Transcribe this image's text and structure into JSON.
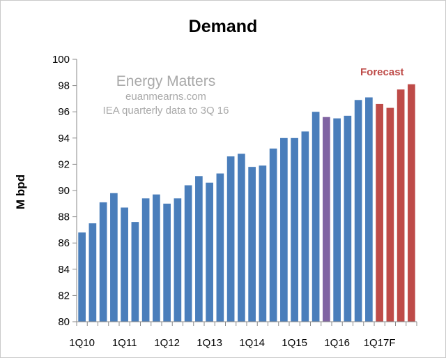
{
  "chart_data": {
    "type": "bar",
    "title": "Demand",
    "ylabel": "M bpd",
    "xlabel": "",
    "ylim": [
      80,
      100
    ],
    "yticks": [
      80,
      82,
      84,
      86,
      88,
      90,
      92,
      94,
      96,
      98,
      100
    ],
    "grid": false,
    "x_tick_labels": [
      {
        "label": "1Q10",
        "index": 0
      },
      {
        "label": "1Q11",
        "index": 4
      },
      {
        "label": "1Q12",
        "index": 8
      },
      {
        "label": "1Q13",
        "index": 12
      },
      {
        "label": "1Q14",
        "index": 16
      },
      {
        "label": "1Q15",
        "index": 20
      },
      {
        "label": "1Q16",
        "index": 24
      },
      {
        "label": "1Q17F",
        "index": 28
      }
    ],
    "values": [
      86.8,
      87.5,
      89.1,
      89.8,
      88.7,
      87.6,
      89.4,
      89.7,
      89.0,
      89.4,
      90.4,
      91.1,
      90.6,
      91.3,
      92.6,
      92.8,
      91.8,
      91.9,
      93.2,
      94.0,
      94.0,
      94.5,
      96.0,
      95.6,
      95.5,
      95.7,
      96.9,
      97.1,
      96.6,
      96.3,
      97.7,
      98.1
    ],
    "series_colors": {
      "actual": "#4a7ebb",
      "highlight": "#8064a2",
      "forecast": "#be4b48"
    },
    "highlight_index": 23,
    "forecast_start_index": 28,
    "annotations": {
      "watermark_title": "Energy Matters",
      "watermark_site": "euanmearns.com",
      "watermark_note": "IEA quarterly data to 3Q 16",
      "forecast_label": "Forecast",
      "forecast_label_color": "#be4b48"
    }
  }
}
